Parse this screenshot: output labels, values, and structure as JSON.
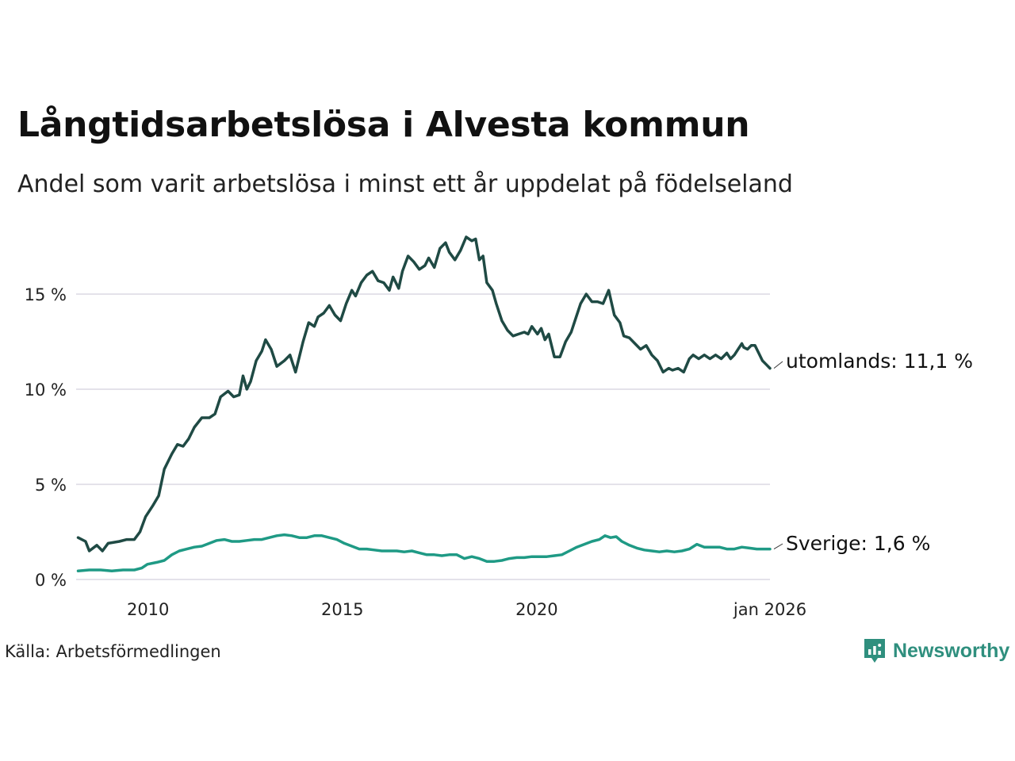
{
  "title": "Långtidsarbetslösa i Alvesta kommun",
  "subtitle": "Andel som varit arbetslösa i minst ett år uppdelat på födelseland",
  "source": "Källa: Arbetsförmedlingen",
  "brand": {
    "name": "Newsworthy",
    "icon": "newsworthy-logo-icon"
  },
  "colors": {
    "utomlands": "#1f4a44",
    "sverige": "#1f9a85",
    "grid": "#e4e2ea"
  },
  "chart_data": {
    "type": "line",
    "title": "Långtidsarbetslösa i Alvesta kommun",
    "xlabel": "",
    "ylabel": "",
    "xlim": [
      2008.15,
      2026.0
    ],
    "ylim": [
      0,
      18
    ],
    "grid": true,
    "y_ticks": [
      {
        "value": 0,
        "label": "0 %"
      },
      {
        "value": 5,
        "label": "5 %"
      },
      {
        "value": 10,
        "label": "10 %"
      },
      {
        "value": 15,
        "label": "15 %"
      }
    ],
    "x_ticks": [
      {
        "value": 2010,
        "label": "2010"
      },
      {
        "value": 2015,
        "label": "2015"
      },
      {
        "value": 2020,
        "label": "2020"
      },
      {
        "value": 2026.0,
        "label": "jan 2026"
      }
    ],
    "series": [
      {
        "name": "utomlands",
        "end_label": "utomlands: 11,1 %",
        "points": [
          [
            2008.2,
            2.2
          ],
          [
            2008.4,
            2.0
          ],
          [
            2008.5,
            1.5
          ],
          [
            2008.7,
            1.8
          ],
          [
            2008.85,
            1.5
          ],
          [
            2009.0,
            1.9
          ],
          [
            2009.3,
            2.0
          ],
          [
            2009.5,
            2.1
          ],
          [
            2009.7,
            2.1
          ],
          [
            2009.85,
            2.5
          ],
          [
            2010.0,
            3.3
          ],
          [
            2010.2,
            3.9
          ],
          [
            2010.35,
            4.4
          ],
          [
            2010.5,
            5.8
          ],
          [
            2010.7,
            6.6
          ],
          [
            2010.85,
            7.1
          ],
          [
            2011.0,
            7.0
          ],
          [
            2011.15,
            7.4
          ],
          [
            2011.3,
            8.0
          ],
          [
            2011.5,
            8.5
          ],
          [
            2011.7,
            8.5
          ],
          [
            2011.85,
            8.7
          ],
          [
            2012.0,
            9.6
          ],
          [
            2012.2,
            9.9
          ],
          [
            2012.35,
            9.6
          ],
          [
            2012.5,
            9.7
          ],
          [
            2012.6,
            10.7
          ],
          [
            2012.7,
            10.0
          ],
          [
            2012.8,
            10.4
          ],
          [
            2012.95,
            11.5
          ],
          [
            2013.1,
            12.0
          ],
          [
            2013.2,
            12.6
          ],
          [
            2013.35,
            12.1
          ],
          [
            2013.5,
            11.2
          ],
          [
            2013.7,
            11.5
          ],
          [
            2013.85,
            11.8
          ],
          [
            2014.0,
            10.9
          ],
          [
            2014.2,
            12.5
          ],
          [
            2014.35,
            13.5
          ],
          [
            2014.5,
            13.3
          ],
          [
            2014.6,
            13.8
          ],
          [
            2014.75,
            14.0
          ],
          [
            2014.9,
            14.4
          ],
          [
            2015.05,
            13.9
          ],
          [
            2015.2,
            13.6
          ],
          [
            2015.35,
            14.5
          ],
          [
            2015.5,
            15.2
          ],
          [
            2015.6,
            14.9
          ],
          [
            2015.75,
            15.6
          ],
          [
            2015.9,
            16.0
          ],
          [
            2016.05,
            16.2
          ],
          [
            2016.2,
            15.7
          ],
          [
            2016.35,
            15.6
          ],
          [
            2016.5,
            15.2
          ],
          [
            2016.6,
            15.9
          ],
          [
            2016.75,
            15.3
          ],
          [
            2016.85,
            16.2
          ],
          [
            2017.0,
            17.0
          ],
          [
            2017.15,
            16.7
          ],
          [
            2017.3,
            16.3
          ],
          [
            2017.45,
            16.5
          ],
          [
            2017.55,
            16.9
          ],
          [
            2017.7,
            16.4
          ],
          [
            2017.85,
            17.4
          ],
          [
            2018.0,
            17.7
          ],
          [
            2018.1,
            17.2
          ],
          [
            2018.25,
            16.8
          ],
          [
            2018.4,
            17.3
          ],
          [
            2018.55,
            18.0
          ],
          [
            2018.7,
            17.8
          ],
          [
            2018.8,
            17.9
          ],
          [
            2018.9,
            16.8
          ],
          [
            2019.0,
            17.0
          ],
          [
            2019.1,
            15.6
          ],
          [
            2019.25,
            15.2
          ],
          [
            2019.35,
            14.5
          ],
          [
            2019.5,
            13.6
          ],
          [
            2019.65,
            13.1
          ],
          [
            2019.8,
            12.8
          ],
          [
            2019.95,
            12.9
          ],
          [
            2020.1,
            13.0
          ],
          [
            2020.2,
            12.9
          ],
          [
            2020.3,
            13.3
          ],
          [
            2020.45,
            12.9
          ],
          [
            2020.55,
            13.2
          ],
          [
            2020.65,
            12.6
          ],
          [
            2020.75,
            12.9
          ],
          [
            2020.9,
            11.7
          ],
          [
            2021.05,
            11.7
          ],
          [
            2021.2,
            12.5
          ],
          [
            2021.35,
            13.0
          ],
          [
            2021.5,
            13.9
          ],
          [
            2021.6,
            14.5
          ],
          [
            2021.75,
            15.0
          ],
          [
            2021.9,
            14.6
          ],
          [
            2022.05,
            14.6
          ],
          [
            2022.2,
            14.5
          ],
          [
            2022.35,
            15.2
          ],
          [
            2022.5,
            13.9
          ],
          [
            2022.65,
            13.5
          ],
          [
            2022.75,
            12.8
          ],
          [
            2022.9,
            12.7
          ],
          [
            2023.05,
            12.4
          ],
          [
            2023.2,
            12.1
          ],
          [
            2023.35,
            12.3
          ],
          [
            2023.5,
            11.8
          ],
          [
            2023.65,
            11.5
          ],
          [
            2023.8,
            10.9
          ],
          [
            2023.95,
            11.1
          ],
          [
            2024.05,
            11.0
          ],
          [
            2024.2,
            11.1
          ],
          [
            2024.35,
            10.9
          ],
          [
            2024.5,
            11.6
          ],
          [
            2024.6,
            11.8
          ],
          [
            2024.75,
            11.6
          ],
          [
            2024.9,
            11.8
          ],
          [
            2025.05,
            11.6
          ],
          [
            2025.2,
            11.8
          ],
          [
            2025.35,
            11.6
          ],
          [
            2025.5,
            11.9
          ],
          [
            2025.6,
            11.6
          ],
          [
            2025.7,
            11.8
          ],
          [
            2025.8,
            12.1
          ],
          [
            2025.9,
            12.4
          ],
          [
            2025.95,
            12.2
          ],
          [
            2026.05,
            12.1
          ],
          [
            2026.15,
            12.3
          ],
          [
            2026.25,
            12.3
          ],
          [
            2026.35,
            11.9
          ],
          [
            2026.45,
            11.5
          ],
          [
            2026.55,
            11.3
          ],
          [
            2026.65,
            11.1
          ]
        ]
      },
      {
        "name": "Sverige",
        "end_label": "Sverige:  1,6 %",
        "points": [
          [
            2008.2,
            0.45
          ],
          [
            2008.5,
            0.5
          ],
          [
            2008.8,
            0.5
          ],
          [
            2009.1,
            0.45
          ],
          [
            2009.4,
            0.5
          ],
          [
            2009.7,
            0.5
          ],
          [
            2009.9,
            0.6
          ],
          [
            2010.05,
            0.8
          ],
          [
            2010.3,
            0.9
          ],
          [
            2010.5,
            1.0
          ],
          [
            2010.7,
            1.3
          ],
          [
            2010.9,
            1.5
          ],
          [
            2011.1,
            1.6
          ],
          [
            2011.3,
            1.7
          ],
          [
            2011.5,
            1.75
          ],
          [
            2011.7,
            1.9
          ],
          [
            2011.9,
            2.05
          ],
          [
            2012.1,
            2.1
          ],
          [
            2012.3,
            2.0
          ],
          [
            2012.5,
            2.0
          ],
          [
            2012.7,
            2.05
          ],
          [
            2012.9,
            2.1
          ],
          [
            2013.1,
            2.1
          ],
          [
            2013.3,
            2.2
          ],
          [
            2013.5,
            2.3
          ],
          [
            2013.7,
            2.35
          ],
          [
            2013.9,
            2.3
          ],
          [
            2014.1,
            2.2
          ],
          [
            2014.3,
            2.2
          ],
          [
            2014.5,
            2.3
          ],
          [
            2014.7,
            2.3
          ],
          [
            2014.9,
            2.2
          ],
          [
            2015.1,
            2.1
          ],
          [
            2015.3,
            1.9
          ],
          [
            2015.5,
            1.75
          ],
          [
            2015.7,
            1.6
          ],
          [
            2015.9,
            1.6
          ],
          [
            2016.1,
            1.55
          ],
          [
            2016.3,
            1.5
          ],
          [
            2016.5,
            1.5
          ],
          [
            2016.7,
            1.5
          ],
          [
            2016.9,
            1.45
          ],
          [
            2017.1,
            1.5
          ],
          [
            2017.3,
            1.4
          ],
          [
            2017.5,
            1.3
          ],
          [
            2017.7,
            1.3
          ],
          [
            2017.9,
            1.25
          ],
          [
            2018.1,
            1.3
          ],
          [
            2018.3,
            1.3
          ],
          [
            2018.5,
            1.1
          ],
          [
            2018.7,
            1.2
          ],
          [
            2018.9,
            1.1
          ],
          [
            2019.1,
            0.95
          ],
          [
            2019.3,
            0.95
          ],
          [
            2019.5,
            1.0
          ],
          [
            2019.7,
            1.1
          ],
          [
            2019.9,
            1.15
          ],
          [
            2020.1,
            1.15
          ],
          [
            2020.3,
            1.2
          ],
          [
            2020.5,
            1.2
          ],
          [
            2020.7,
            1.2
          ],
          [
            2020.9,
            1.25
          ],
          [
            2021.1,
            1.3
          ],
          [
            2021.3,
            1.5
          ],
          [
            2021.5,
            1.7
          ],
          [
            2021.7,
            1.85
          ],
          [
            2021.9,
            2.0
          ],
          [
            2022.1,
            2.1
          ],
          [
            2022.25,
            2.3
          ],
          [
            2022.4,
            2.2
          ],
          [
            2022.55,
            2.25
          ],
          [
            2022.7,
            2.0
          ],
          [
            2022.9,
            1.8
          ],
          [
            2023.1,
            1.65
          ],
          [
            2023.3,
            1.55
          ],
          [
            2023.5,
            1.5
          ],
          [
            2023.7,
            1.45
          ],
          [
            2023.9,
            1.5
          ],
          [
            2024.1,
            1.45
          ],
          [
            2024.3,
            1.5
          ],
          [
            2024.5,
            1.6
          ],
          [
            2024.7,
            1.85
          ],
          [
            2024.9,
            1.7
          ],
          [
            2025.1,
            1.7
          ],
          [
            2025.3,
            1.7
          ],
          [
            2025.5,
            1.6
          ],
          [
            2025.7,
            1.6
          ],
          [
            2025.9,
            1.7
          ],
          [
            2026.1,
            1.65
          ],
          [
            2026.3,
            1.6
          ],
          [
            2026.5,
            1.6
          ],
          [
            2026.65,
            1.6
          ]
        ]
      }
    ]
  }
}
